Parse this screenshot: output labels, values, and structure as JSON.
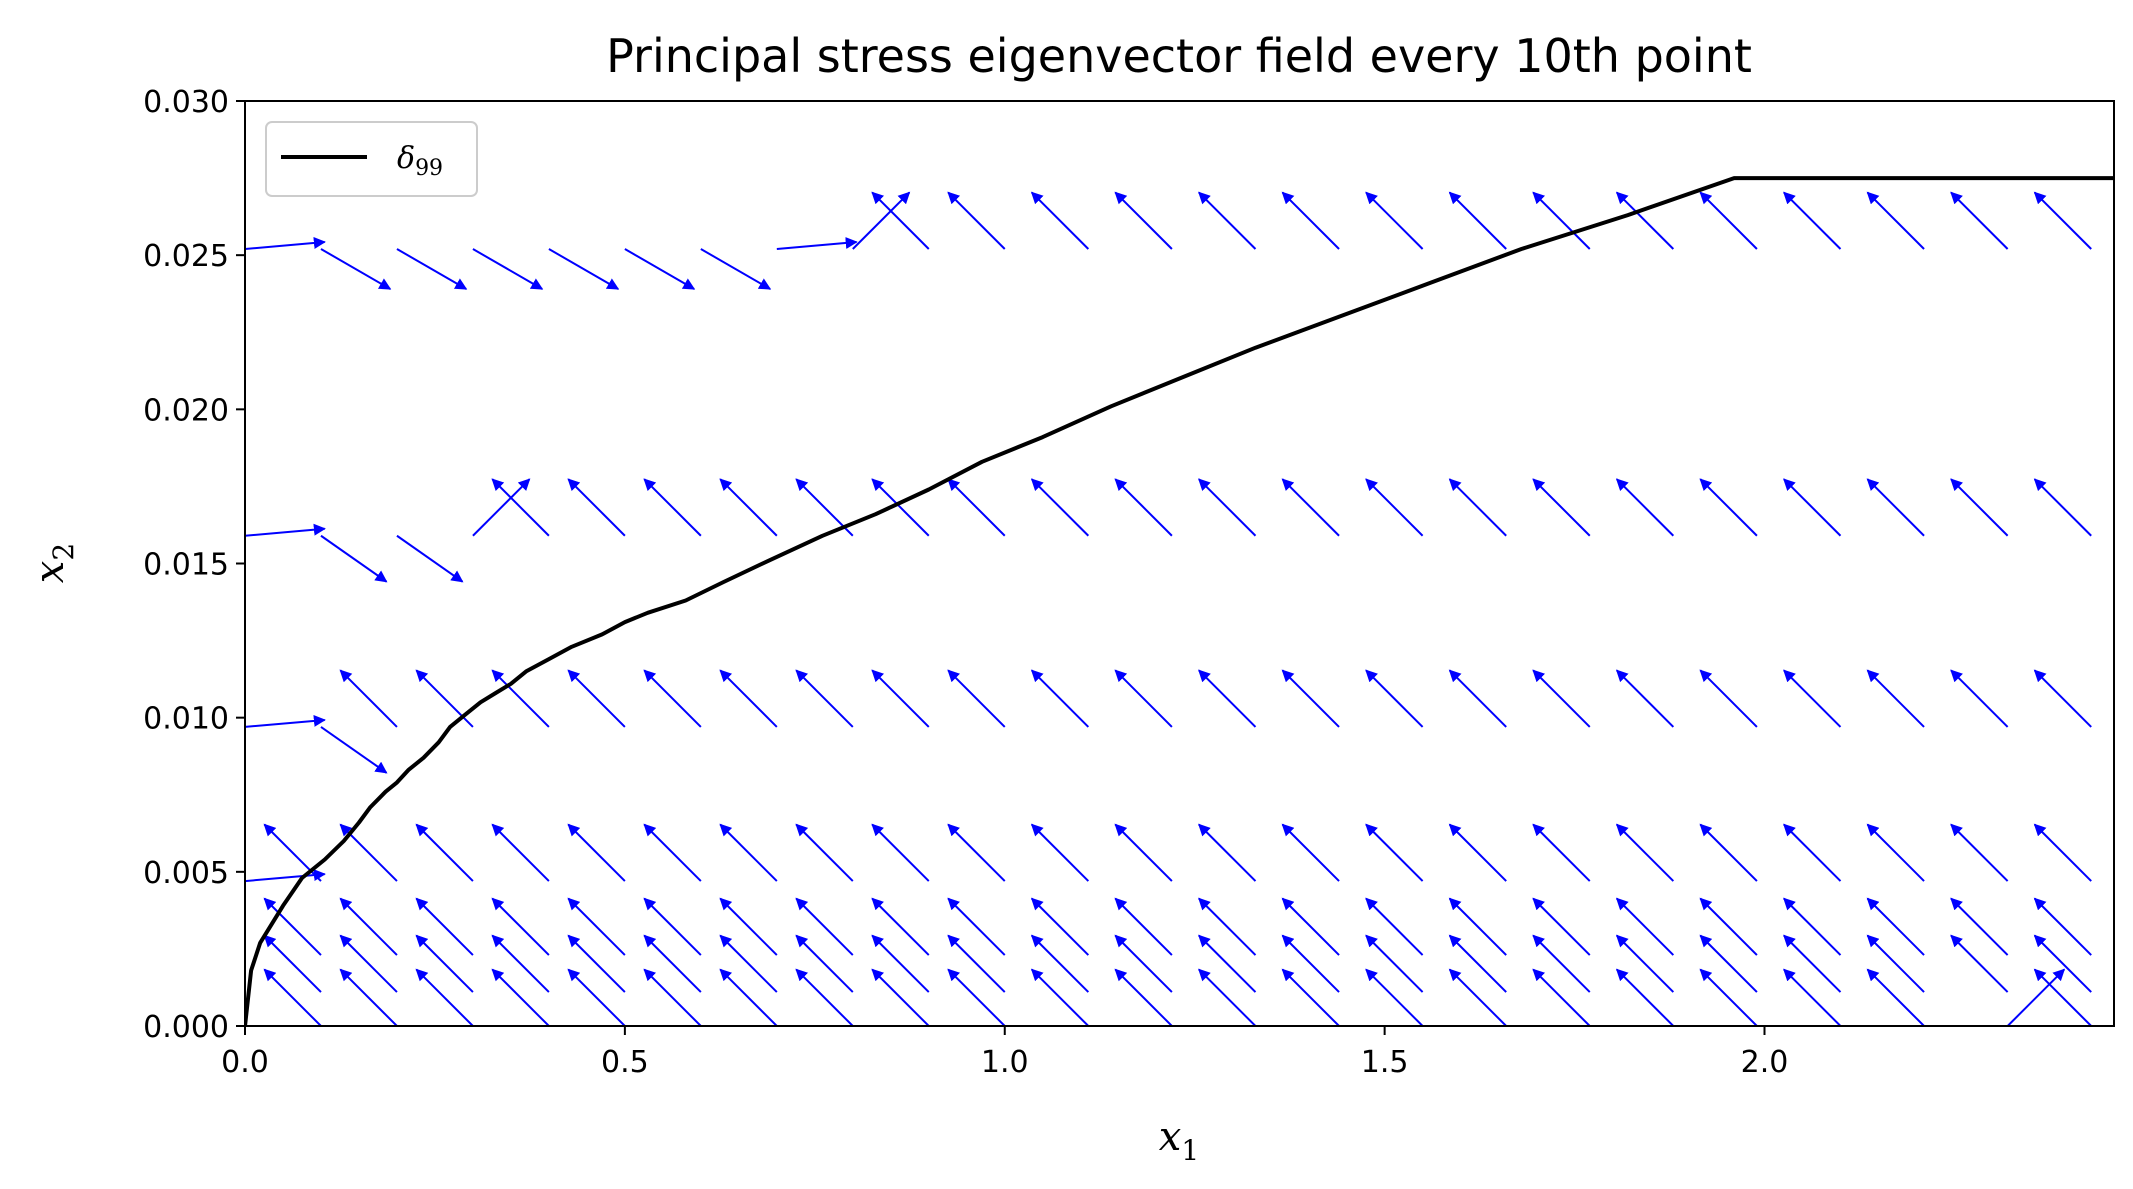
{
  "chart_data": {
    "type": "quiver",
    "title": "Principal stress eigenvector field every 10th point",
    "xlabel": {
      "base": "x",
      "sub": "1"
    },
    "ylabel": {
      "base": "x",
      "sub": "2"
    },
    "xlim": [
      0.0,
      2.46
    ],
    "ylim": [
      0.0,
      0.03
    ],
    "x_ticks": [
      "0.0",
      "0.5",
      "1.0",
      "1.5",
      "2.0"
    ],
    "x_tick_values": [
      0.0,
      0.5,
      1.0,
      1.5,
      2.0
    ],
    "y_ticks": [
      "0.000",
      "0.005",
      "0.010",
      "0.015",
      "0.020",
      "0.025",
      "0.030"
    ],
    "y_tick_values": [
      0.0,
      0.005,
      0.01,
      0.015,
      0.02,
      0.025,
      0.03
    ],
    "legend": {
      "placement": "top-left",
      "entries": [
        {
          "base": "δ",
          "sub": "99",
          "color": "#000000"
        }
      ]
    },
    "colors": {
      "arrows": "#0000ff",
      "delta99": "#000000"
    },
    "grid": false,
    "quiver": {
      "description": "unit eigenvector directions sampled every 10th grid point",
      "columns_x": [
        0.0,
        0.1,
        0.2,
        0.3,
        0.4,
        0.5,
        0.6,
        0.7,
        0.8,
        0.9,
        1.0,
        1.11,
        1.22,
        1.33,
        1.44,
        1.55,
        1.66,
        1.77,
        1.88,
        1.99,
        2.1,
        2.21,
        2.32,
        2.43
      ],
      "rows": [
        {
          "y": 0.0,
          "angles": [
            135,
            135,
            135,
            135,
            135,
            135,
            135,
            135,
            135,
            135,
            135,
            135,
            135,
            135,
            135,
            135,
            135,
            135,
            135,
            135,
            135,
            135,
            45,
            135
          ]
        },
        {
          "y": 0.0011,
          "angles": [
            165,
            135,
            135,
            135,
            135,
            135,
            135,
            135,
            135,
            135,
            135,
            135,
            135,
            135,
            135,
            135,
            135,
            135,
            135,
            135,
            135,
            135,
            135,
            135
          ]
        },
        {
          "y": 0.0023,
          "angles": [
            135,
            135,
            135,
            135,
            135,
            135,
            135,
            135,
            135,
            135,
            135,
            135,
            135,
            135,
            135,
            135,
            135,
            135,
            135,
            135,
            135,
            135,
            135,
            135
          ]
        },
        {
          "y": 0.0047,
          "angles": [
            5,
            135,
            135,
            135,
            135,
            135,
            135,
            135,
            135,
            135,
            135,
            135,
            135,
            135,
            135,
            135,
            135,
            135,
            135,
            135,
            135,
            135,
            135,
            135
          ]
        },
        {
          "y": 0.0097,
          "angles": [
            5,
            325,
            135,
            135,
            135,
            135,
            135,
            135,
            135,
            135,
            135,
            135,
            135,
            135,
            135,
            135,
            135,
            135,
            135,
            135,
            135,
            135,
            135,
            135
          ]
        },
        {
          "y": 0.0159,
          "angles": [
            5,
            325,
            325,
            45,
            135,
            135,
            135,
            135,
            135,
            135,
            135,
            135,
            135,
            135,
            135,
            135,
            135,
            135,
            135,
            135,
            135,
            135,
            135,
            135
          ]
        },
        {
          "y": 0.0252,
          "angles": [
            5,
            330,
            330,
            330,
            330,
            330,
            330,
            5,
            45,
            135,
            135,
            135,
            135,
            135,
            135,
            135,
            135,
            135,
            135,
            135,
            135,
            135,
            135,
            135
          ]
        }
      ]
    },
    "series": [
      {
        "name": "δ99",
        "x": [
          0.0,
          0.008,
          0.02,
          0.05,
          0.075,
          0.105,
          0.13,
          0.15,
          0.165,
          0.185,
          0.2,
          0.215,
          0.235,
          0.255,
          0.27,
          0.29,
          0.31,
          0.33,
          0.35,
          0.37,
          0.4,
          0.43,
          0.47,
          0.5,
          0.53,
          0.58,
          0.63,
          0.69,
          0.76,
          0.83,
          0.9,
          0.97,
          1.05,
          1.14,
          1.23,
          1.33,
          1.44,
          1.56,
          1.68,
          1.82,
          1.96,
          2.11,
          2.27,
          2.44,
          2.46
        ],
        "y": [
          0.0,
          0.0018,
          0.0027,
          0.0039,
          0.0048,
          0.0054,
          0.006,
          0.0066,
          0.0071,
          0.0076,
          0.0079,
          0.0083,
          0.0087,
          0.0092,
          0.0097,
          0.0101,
          0.0105,
          0.0108,
          0.0111,
          0.0115,
          0.0119,
          0.0123,
          0.0127,
          0.0131,
          0.0134,
          0.0138,
          0.0144,
          0.0151,
          0.0159,
          0.0166,
          0.0174,
          0.0183,
          0.0191,
          0.0201,
          0.021,
          0.022,
          0.023,
          0.0241,
          0.0252,
          0.0263,
          0.0275,
          0.0275,
          0.0275,
          0.0275,
          0.0275
        ]
      }
    ]
  }
}
